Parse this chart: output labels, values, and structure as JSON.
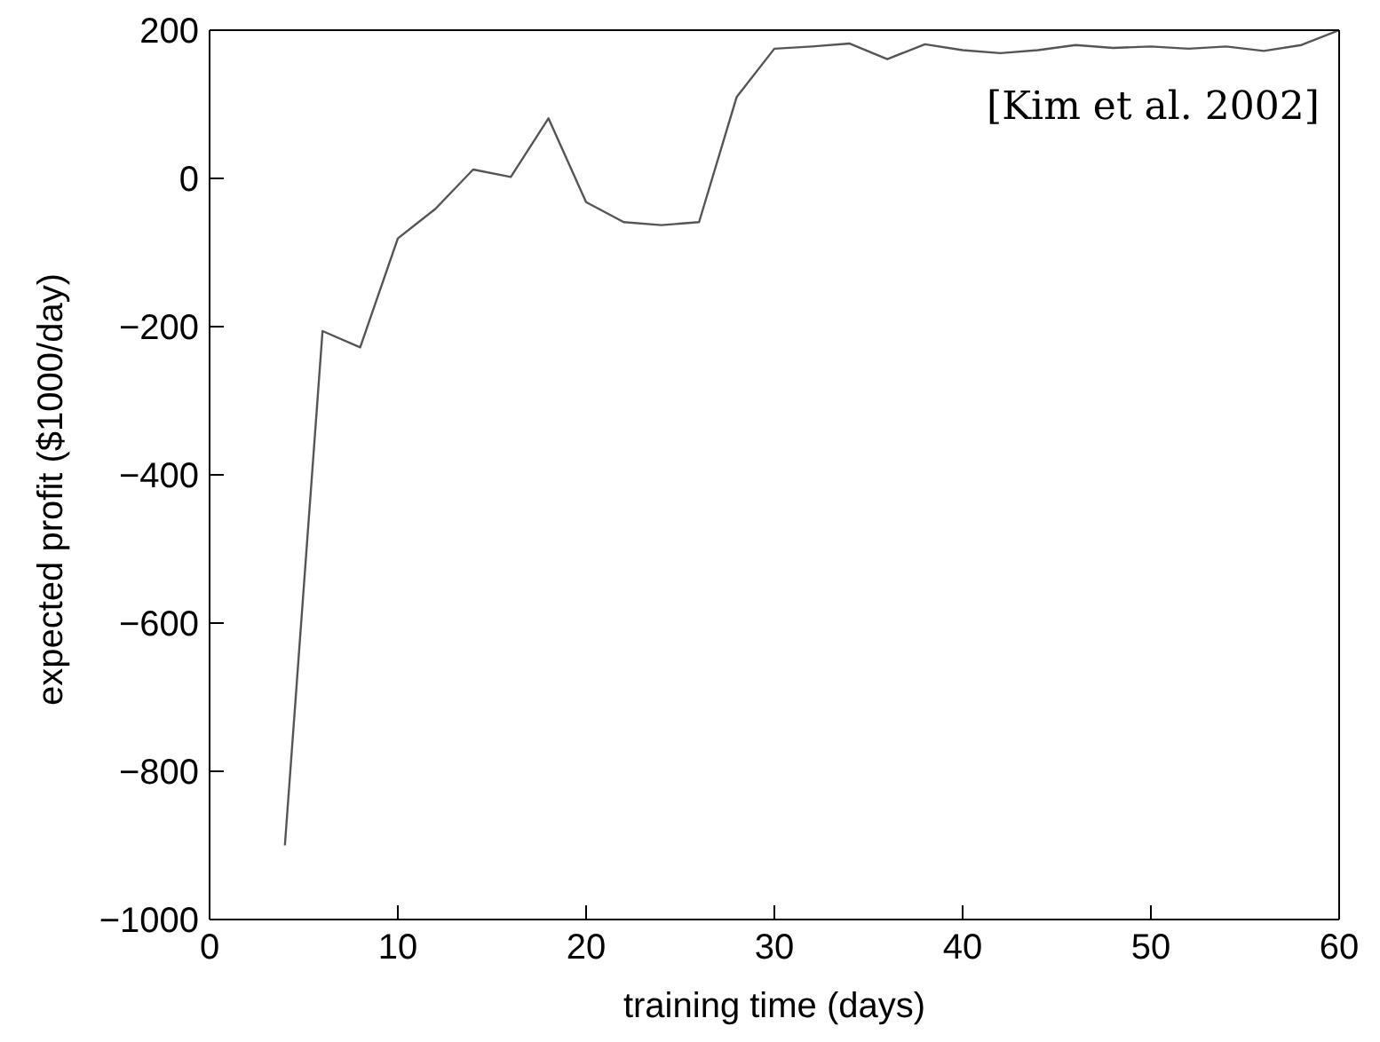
{
  "chart_data": {
    "type": "line",
    "xlabel": "training time (days)",
    "ylabel": "expected profit ($1000/day)",
    "annotations": [
      "[Kim et al. 2002]"
    ],
    "x": [
      4,
      6,
      8,
      10,
      12,
      14,
      16,
      18,
      20,
      22,
      24,
      26,
      28,
      30,
      32,
      34,
      36,
      38,
      40,
      42,
      44,
      46,
      48,
      50,
      52,
      54,
      56,
      58,
      60
    ],
    "series": [
      {
        "color": "#555555",
        "values": [
          -900,
          -206,
          -228,
          -81,
          -41,
          12,
          2,
          81,
          -32,
          -59,
          -63,
          -59,
          110,
          175,
          178,
          182,
          161,
          181,
          173,
          169,
          173,
          180,
          176,
          178,
          175,
          178,
          172,
          180,
          200
        ]
      }
    ],
    "xlim": [
      0,
      60
    ],
    "xticks": [
      0,
      10,
      20,
      30,
      40,
      50,
      60
    ],
    "ylim": [
      -1000,
      200
    ],
    "yticks": [
      -1000,
      -800,
      -600,
      -400,
      -200,
      0,
      200
    ],
    "grid": false,
    "legend": false,
    "marker": "none",
    "line_style": "solid"
  }
}
